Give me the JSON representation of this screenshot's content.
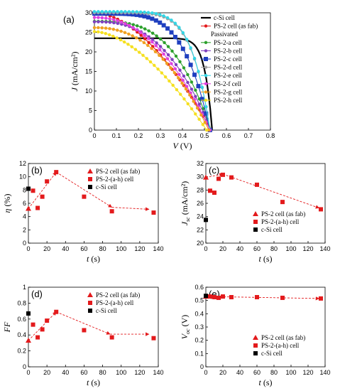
{
  "chart_data": [
    {
      "id": "a",
      "type": "line",
      "panel_label": "(a)",
      "xlabel": "V",
      "xunit": " (V)",
      "ylabel": "J",
      "yunit": " (mA/cm²)",
      "xlim": [
        0,
        0.8
      ],
      "ylim": [
        0,
        30
      ],
      "xticks": [
        "0",
        "0.1",
        "0.2",
        "0.3",
        "0.4",
        "0.5",
        "0.6",
        "0.7",
        "0.8"
      ],
      "yticks": [
        "0",
        "5",
        "10",
        "15",
        "20",
        "25",
        "30"
      ],
      "legend_subheading": "Passivated",
      "series": [
        {
          "name": "c-Si cell",
          "color": "#000000",
          "marker": "none",
          "jsc": 23.5,
          "voc": 0.535,
          "n": 16,
          "width": 2.2
        },
        {
          "name": "PS-2 cell (as fab)",
          "color": "#e31a1c",
          "marker": "circle",
          "jsc": 30.0,
          "voc": 0.53,
          "n": 1.8
        },
        {
          "name": "PS-2-a cell",
          "color": "#2ca02c",
          "marker": "circle",
          "jsc": 27.8,
          "voc": 0.53,
          "n": 3.2
        },
        {
          "name": "PS-2-b cell",
          "color": "#7f3fbf",
          "marker": "circle",
          "jsc": 27.7,
          "voc": 0.53,
          "n": 2.6
        },
        {
          "name": "PS-2-c cell",
          "color": "#1f3fbf",
          "marker": "square",
          "jsc": 29.8,
          "voc": 0.525,
          "n": 4.5
        },
        {
          "name": "PS-2-d cell",
          "color": "#a0a0a0",
          "marker": "circle",
          "jsc": 30.0,
          "voc": 0.525,
          "n": 6.5
        },
        {
          "name": "PS-2-e cell",
          "color": "#33d6e6",
          "marker": "circle",
          "jsc": 30.3,
          "voc": 0.525,
          "n": 6.5
        },
        {
          "name": "PS-2-f cell",
          "color": "#e040e0",
          "marker": "circle",
          "jsc": 28.8,
          "voc": 0.525,
          "n": 2.2
        },
        {
          "name": "PS-2-g cell",
          "color": "#f0a020",
          "marker": "circle",
          "jsc": 26.2,
          "voc": 0.52,
          "n": 2.3
        },
        {
          "name": "PS-2-h cell",
          "color": "#f5e020",
          "marker": "circle",
          "jsc": 25.2,
          "voc": 0.51,
          "n": 1.7
        }
      ]
    },
    {
      "id": "b",
      "type": "scatter",
      "panel_label": "(b)",
      "xlabel": "t",
      "xunit": " (s)",
      "ylabel": "η",
      "yunit": " (%)",
      "xlim": [
        0,
        140
      ],
      "ylim": [
        0,
        12
      ],
      "xticks": [
        "0",
        "20",
        "40",
        "60",
        "80",
        "100",
        "120",
        "140"
      ],
      "yticks": [
        "0",
        "2",
        "4",
        "6",
        "8",
        "10",
        "12"
      ],
      "legend": [
        "PS-2 cell (as fab)",
        "PS-2-(a-h) cell",
        "c-Si cell"
      ],
      "as_fab": [
        {
          "x": 0,
          "y": 5.2
        }
      ],
      "passivated": [
        {
          "x": 5,
          "y": 7.9
        },
        {
          "x": 10,
          "y": 5.3
        },
        {
          "x": 15,
          "y": 7.0
        },
        {
          "x": 20,
          "y": 9.3
        },
        {
          "x": 30,
          "y": 10.7
        },
        {
          "x": 60,
          "y": 7.0
        },
        {
          "x": 90,
          "y": 4.8
        },
        {
          "x": 135,
          "y": 4.6
        }
      ],
      "csi": [
        {
          "x": 0,
          "y": 8.2
        }
      ],
      "trend": [
        {
          "x": 0,
          "y": 5.2
        },
        {
          "x": 30,
          "y": 10.7
        },
        {
          "x": 90,
          "y": 5.4
        },
        {
          "x": 130,
          "y": 5.1
        }
      ]
    },
    {
      "id": "c",
      "type": "scatter",
      "panel_label": "(c)",
      "xlabel": "t",
      "xunit": " (s)",
      "ylabel": "Jsc",
      "yunit": " (mA/cm²)",
      "xlim": [
        0,
        140
      ],
      "ylim": [
        20,
        32
      ],
      "xticks": [
        "0",
        "20",
        "40",
        "60",
        "80",
        "100",
        "120",
        "140"
      ],
      "yticks": [
        "20",
        "22",
        "24",
        "26",
        "28",
        "30",
        "32"
      ],
      "legend": [
        "PS-2 cell (as fab)",
        "PS-2-(a-h) cell",
        "c-Si cell"
      ],
      "as_fab": [
        {
          "x": 0,
          "y": 29.9
        }
      ],
      "passivated": [
        {
          "x": 5,
          "y": 27.9
        },
        {
          "x": 10,
          "y": 27.6
        },
        {
          "x": 15,
          "y": 29.7
        },
        {
          "x": 20,
          "y": 30.3
        },
        {
          "x": 30,
          "y": 29.9
        },
        {
          "x": 60,
          "y": 28.8
        },
        {
          "x": 90,
          "y": 26.2
        },
        {
          "x": 135,
          "y": 25.1
        }
      ],
      "csi": [
        {
          "x": 0,
          "y": 23.5
        }
      ],
      "trend": [
        {
          "x": 0,
          "y": 29.9
        },
        {
          "x": 20,
          "y": 30.4
        },
        {
          "x": 133,
          "y": 25.3
        }
      ]
    },
    {
      "id": "d",
      "type": "scatter",
      "panel_label": "(d)",
      "xlabel": "t",
      "xunit": " (s)",
      "ylabel": "FF",
      "yunit": "",
      "xlim": [
        0,
        140
      ],
      "ylim": [
        0,
        1
      ],
      "xticks": [
        "0",
        "20",
        "40",
        "60",
        "80",
        "100",
        "120",
        "140"
      ],
      "yticks": [
        "0",
        "0.2",
        "0.4",
        "0.6",
        "0.8",
        "1"
      ],
      "legend": [
        "PS-2 cell (as fab)",
        "PS-2-(a-h) cell",
        "c-Si cell"
      ],
      "as_fab": [
        {
          "x": 0,
          "y": 0.33
        }
      ],
      "passivated": [
        {
          "x": 5,
          "y": 0.53
        },
        {
          "x": 10,
          "y": 0.37
        },
        {
          "x": 15,
          "y": 0.47
        },
        {
          "x": 20,
          "y": 0.58
        },
        {
          "x": 30,
          "y": 0.69
        },
        {
          "x": 60,
          "y": 0.46
        },
        {
          "x": 90,
          "y": 0.37
        },
        {
          "x": 135,
          "y": 0.36
        }
      ],
      "csi": [
        {
          "x": 0,
          "y": 0.67
        }
      ],
      "trend": [
        {
          "x": 0,
          "y": 0.33
        },
        {
          "x": 30,
          "y": 0.69
        },
        {
          "x": 88,
          "y": 0.41
        },
        {
          "x": 130,
          "y": 0.41
        }
      ]
    },
    {
      "id": "e",
      "type": "scatter",
      "panel_label": "(e)",
      "xlabel": "t",
      "xunit": " (s)",
      "ylabel": "Voc",
      "yunit": " (V)",
      "xlim": [
        0,
        140
      ],
      "ylim": [
        0,
        0.6
      ],
      "xticks": [
        "0",
        "20",
        "40",
        "60",
        "80",
        "100",
        "120",
        "140"
      ],
      "yticks": [
        "0",
        "0.1",
        "0.2",
        "0.3",
        "0.4",
        "0.5",
        "0.6"
      ],
      "legend": [
        "PS-2 cell (as fab)",
        "PS-2-(a-h) cell",
        "c-Si cell"
      ],
      "as_fab": [
        {
          "x": 0,
          "y": 0.53
        }
      ],
      "passivated": [
        {
          "x": 5,
          "y": 0.53
        },
        {
          "x": 10,
          "y": 0.525
        },
        {
          "x": 15,
          "y": 0.52
        },
        {
          "x": 20,
          "y": 0.53
        },
        {
          "x": 30,
          "y": 0.525
        },
        {
          "x": 60,
          "y": 0.525
        },
        {
          "x": 90,
          "y": 0.52
        },
        {
          "x": 135,
          "y": 0.515
        }
      ],
      "csi": [
        {
          "x": 0,
          "y": 0.535
        }
      ],
      "trend": [
        {
          "x": 0,
          "y": 0.53
        },
        {
          "x": 133,
          "y": 0.515
        }
      ]
    }
  ]
}
